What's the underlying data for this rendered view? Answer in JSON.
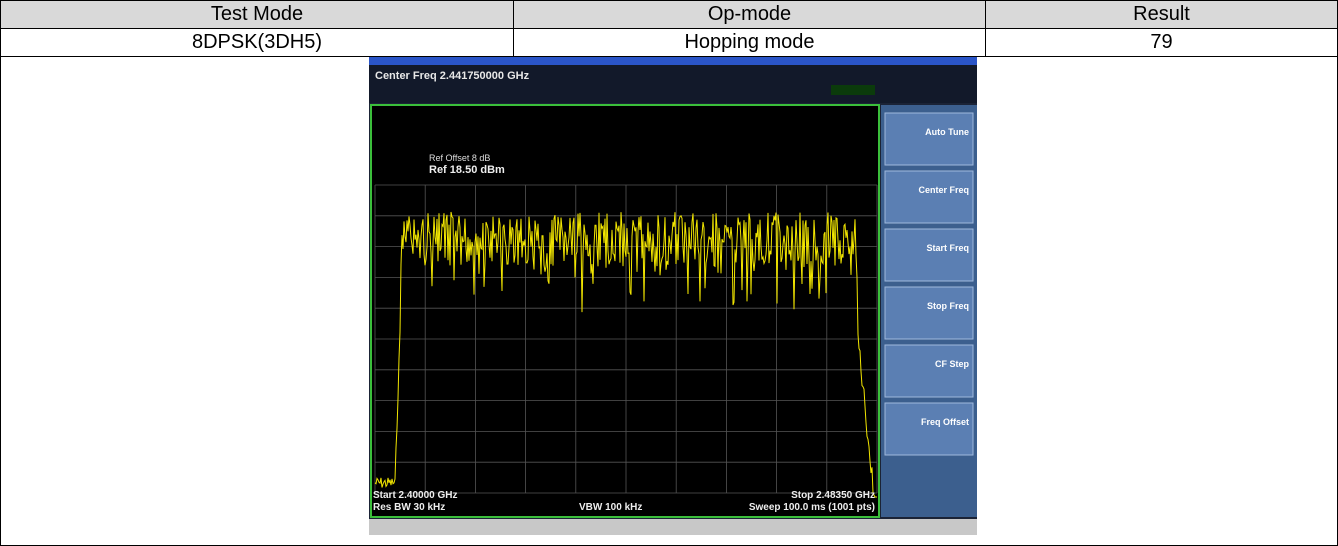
{
  "table": {
    "header": [
      "Test Mode",
      "Op-mode",
      "Result"
    ],
    "rows": [
      [
        "8DPSK(3DH5)",
        "Hopping mode",
        "79"
      ]
    ]
  },
  "screenshot": {
    "center_freq": "Center Freq 2.441750000 GHz",
    "ref_offset": "Ref Offset 8 dB",
    "ref_level": "Ref 18.50 dBm",
    "start": "Start 2.40000 GHz",
    "stop": "Stop 2.48350 GHz",
    "res_bw": "Res BW 30 kHz",
    "vbw": "VBW 100 kHz",
    "sweep": "Sweep 100.0 ms (1001 pts)",
    "softkeys": [
      "Auto Tune",
      "Center Freq",
      "Start Freq",
      "Stop Freq",
      "CF Step",
      "Freq Offset"
    ]
  }
}
